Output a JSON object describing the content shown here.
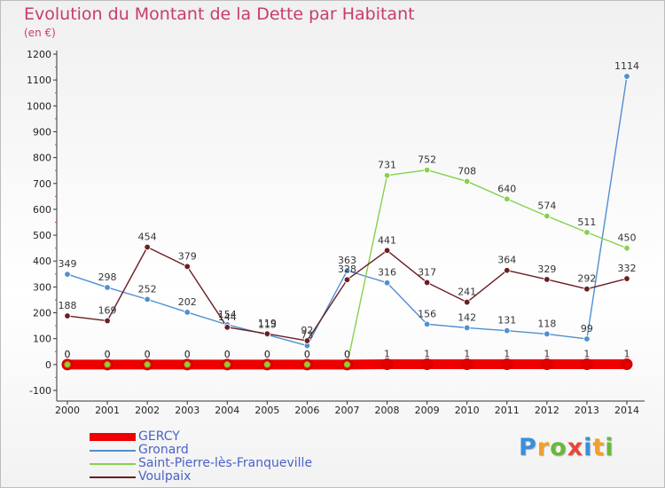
{
  "chart_data": {
    "type": "line",
    "title": "Evolution du Montant de la Dette par Habitant",
    "unit_label": "(en €)",
    "x": [
      "2000",
      "2001",
      "2002",
      "2003",
      "2004",
      "2005",
      "2006",
      "2007",
      "2008",
      "2009",
      "2010",
      "2011",
      "2012",
      "2013",
      "2014"
    ],
    "ylim": [
      -100,
      1200
    ],
    "yticks": [
      -100,
      0,
      100,
      200,
      300,
      400,
      500,
      600,
      700,
      800,
      900,
      1000,
      1100,
      1200
    ],
    "grid": false,
    "legend_position": "bottom-left",
    "series": [
      {
        "name": "GERCY",
        "color": "#ee0000",
        "values": [
          0,
          0,
          0,
          0,
          0,
          0,
          0,
          0,
          1,
          1,
          1,
          1,
          1,
          1,
          1
        ],
        "labels": [
          "0",
          "0",
          "0",
          "0",
          "0",
          "0",
          "0",
          "0",
          "1",
          "1",
          "1",
          "1",
          "1",
          "1",
          "1"
        ]
      },
      {
        "name": "Gronard",
        "color": "#4f8fd1",
        "values": [
          349,
          298,
          252,
          202,
          154,
          115,
          73,
          363,
          316,
          156,
          142,
          131,
          118,
          99,
          1114
        ],
        "labels": [
          "349",
          "298",
          "252",
          "202",
          "154",
          "115",
          "73",
          "363",
          "316",
          "156",
          "142",
          "131",
          "118",
          "99",
          "1114"
        ]
      },
      {
        "name": "Saint-Pierre-lès-Franqueville",
        "color": "#88d04d",
        "values": [
          0,
          0,
          0,
          0,
          0,
          0,
          0,
          0,
          731,
          752,
          708,
          640,
          574,
          511,
          450
        ],
        "labels": [
          "0",
          "0",
          "0",
          "0",
          "0",
          "0",
          "0",
          "0",
          "731",
          "752",
          "708",
          "640",
          "574",
          "511",
          "450"
        ]
      },
      {
        "name": "Voulpaix",
        "color": "#6b1e22",
        "values": [
          188,
          169,
          454,
          379,
          144,
          119,
          92,
          328,
          441,
          317,
          241,
          364,
          329,
          292,
          332
        ],
        "labels": [
          "188",
          "169",
          "454",
          "379",
          "144",
          "119",
          "92",
          "328",
          "441",
          "317",
          "241",
          "364",
          "329",
          "292",
          "332"
        ]
      }
    ]
  },
  "brand": {
    "letters": [
      "P",
      "r",
      "o",
      "x",
      "i",
      "t",
      "i"
    ],
    "colors": [
      "#3a8fd9",
      "#f2a02a",
      "#69b83a",
      "#e8463a",
      "#3a8fd9",
      "#f2a02a",
      "#69b83a"
    ]
  }
}
